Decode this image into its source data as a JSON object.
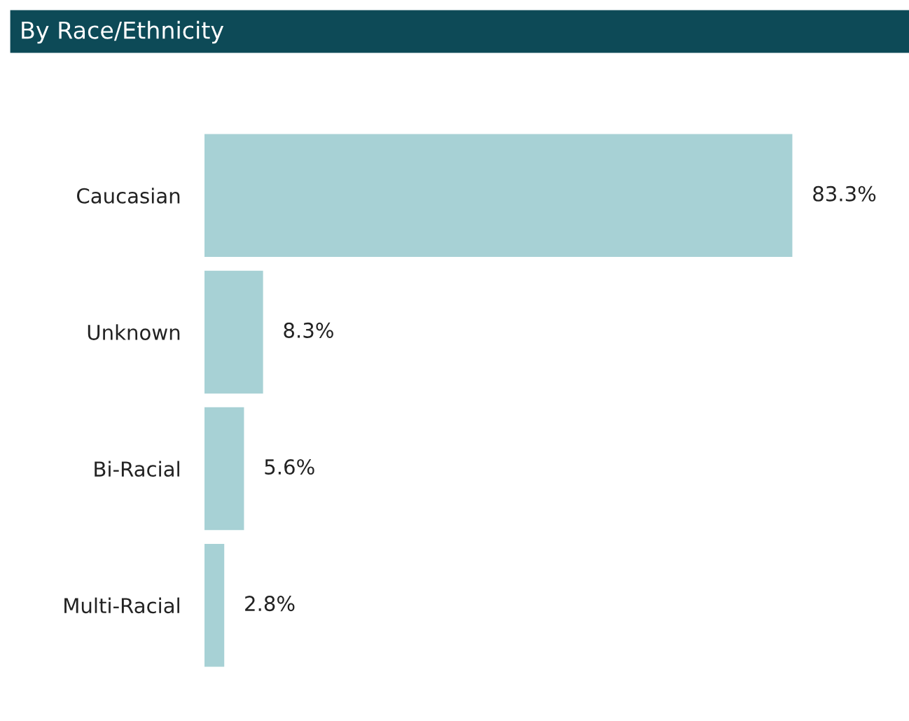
{
  "chart_data": {
    "type": "bar",
    "orientation": "horizontal",
    "title": "By Race/Ethnicity",
    "categories": [
      "Caucasian",
      "Unknown",
      "Bi-Racial",
      "Multi-Racial"
    ],
    "values": [
      83.3,
      8.3,
      5.6,
      2.8
    ],
    "value_labels": [
      "83.3%",
      "8.3%",
      "5.6%",
      "2.8%"
    ],
    "color": "#a7d1d5",
    "grid": false,
    "legend": false
  }
}
